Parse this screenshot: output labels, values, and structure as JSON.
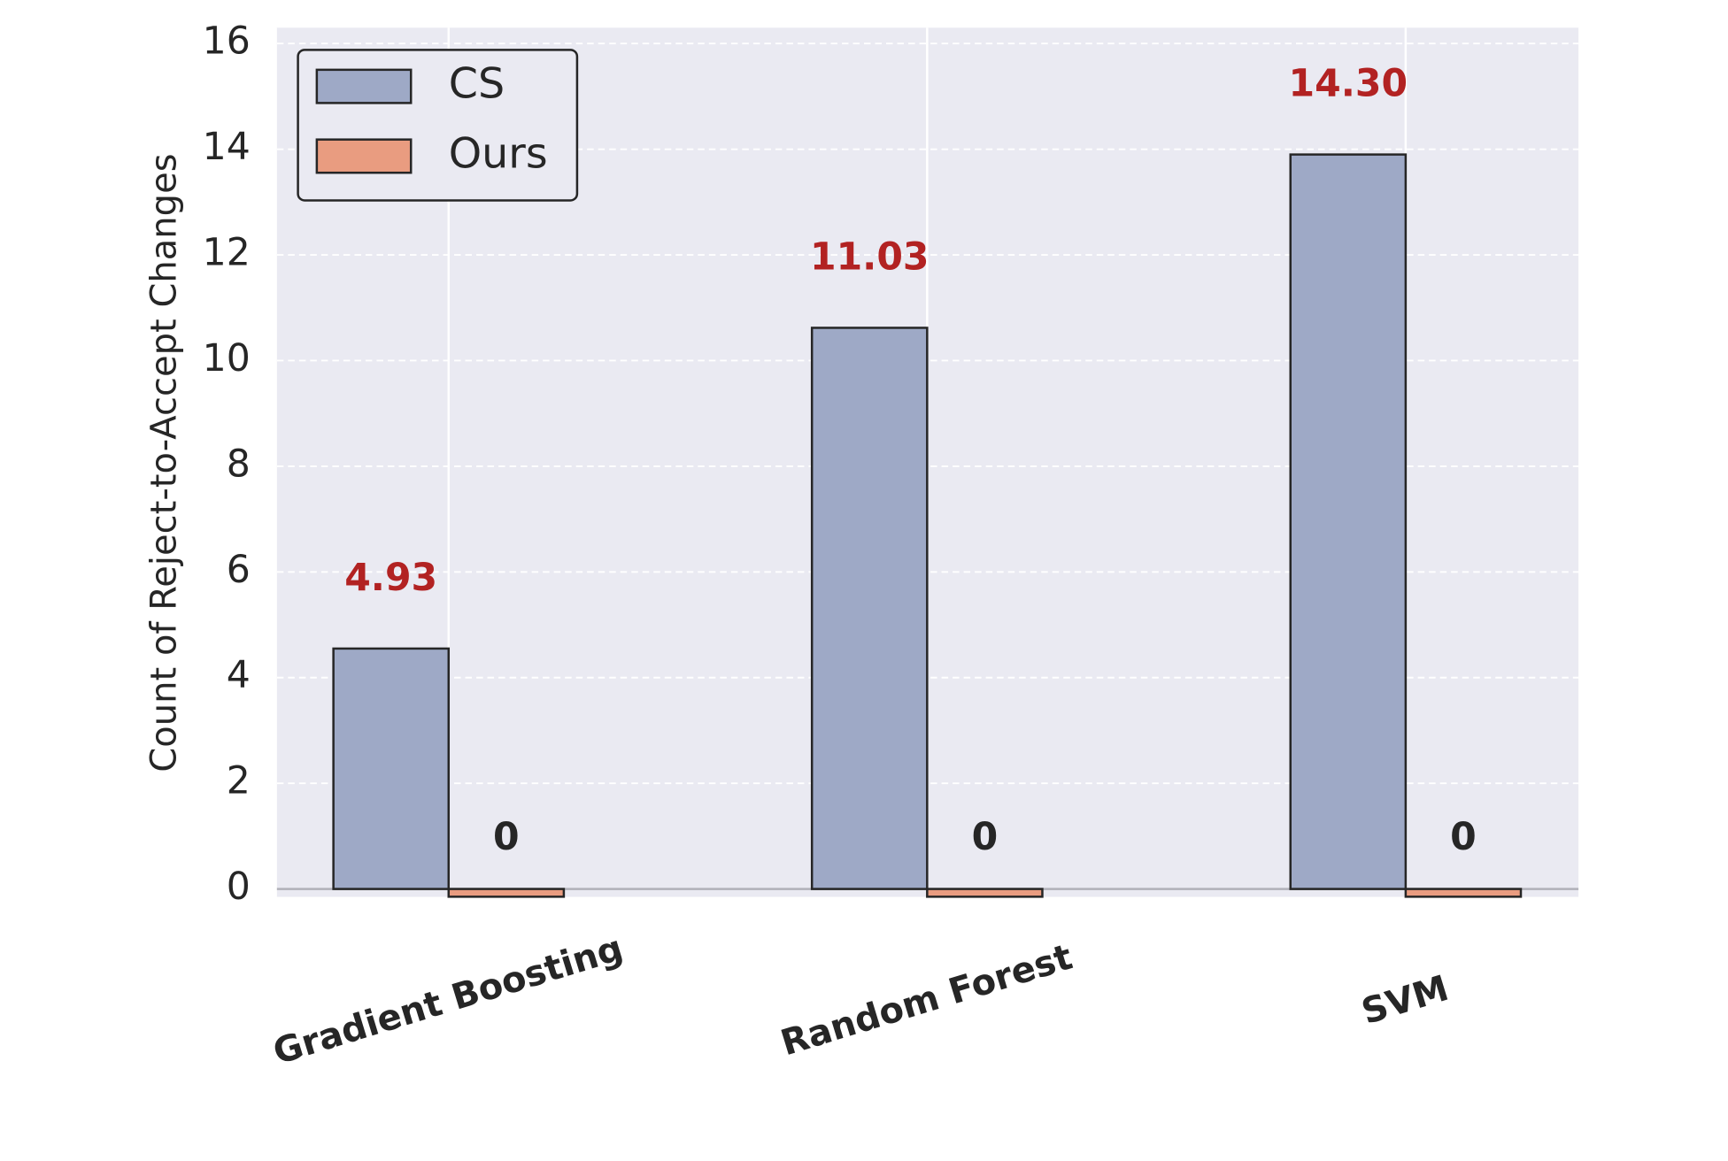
{
  "chart_data": {
    "type": "bar",
    "y_label": "Count of Reject-to-Accept Changes",
    "categories": [
      "Gradient Boosting",
      "Random Forest",
      "SVM"
    ],
    "series": [
      {
        "name": "CS",
        "color": "#9ea9c6",
        "values": [
          4.55,
          10.62,
          13.9
        ]
      },
      {
        "name": "Ours",
        "color": "#e99c80",
        "values": [
          0,
          0,
          0
        ]
      }
    ],
    "annotations": [
      "4.93",
      "11.03",
      "14.30"
    ],
    "annotation_color": "#b22222",
    "ylim": [
      -0.15,
      16.3
    ],
    "yticks": [
      0,
      2,
      4,
      6,
      8,
      10,
      12,
      14,
      16
    ],
    "grid": true,
    "legend_position": "upper left"
  }
}
